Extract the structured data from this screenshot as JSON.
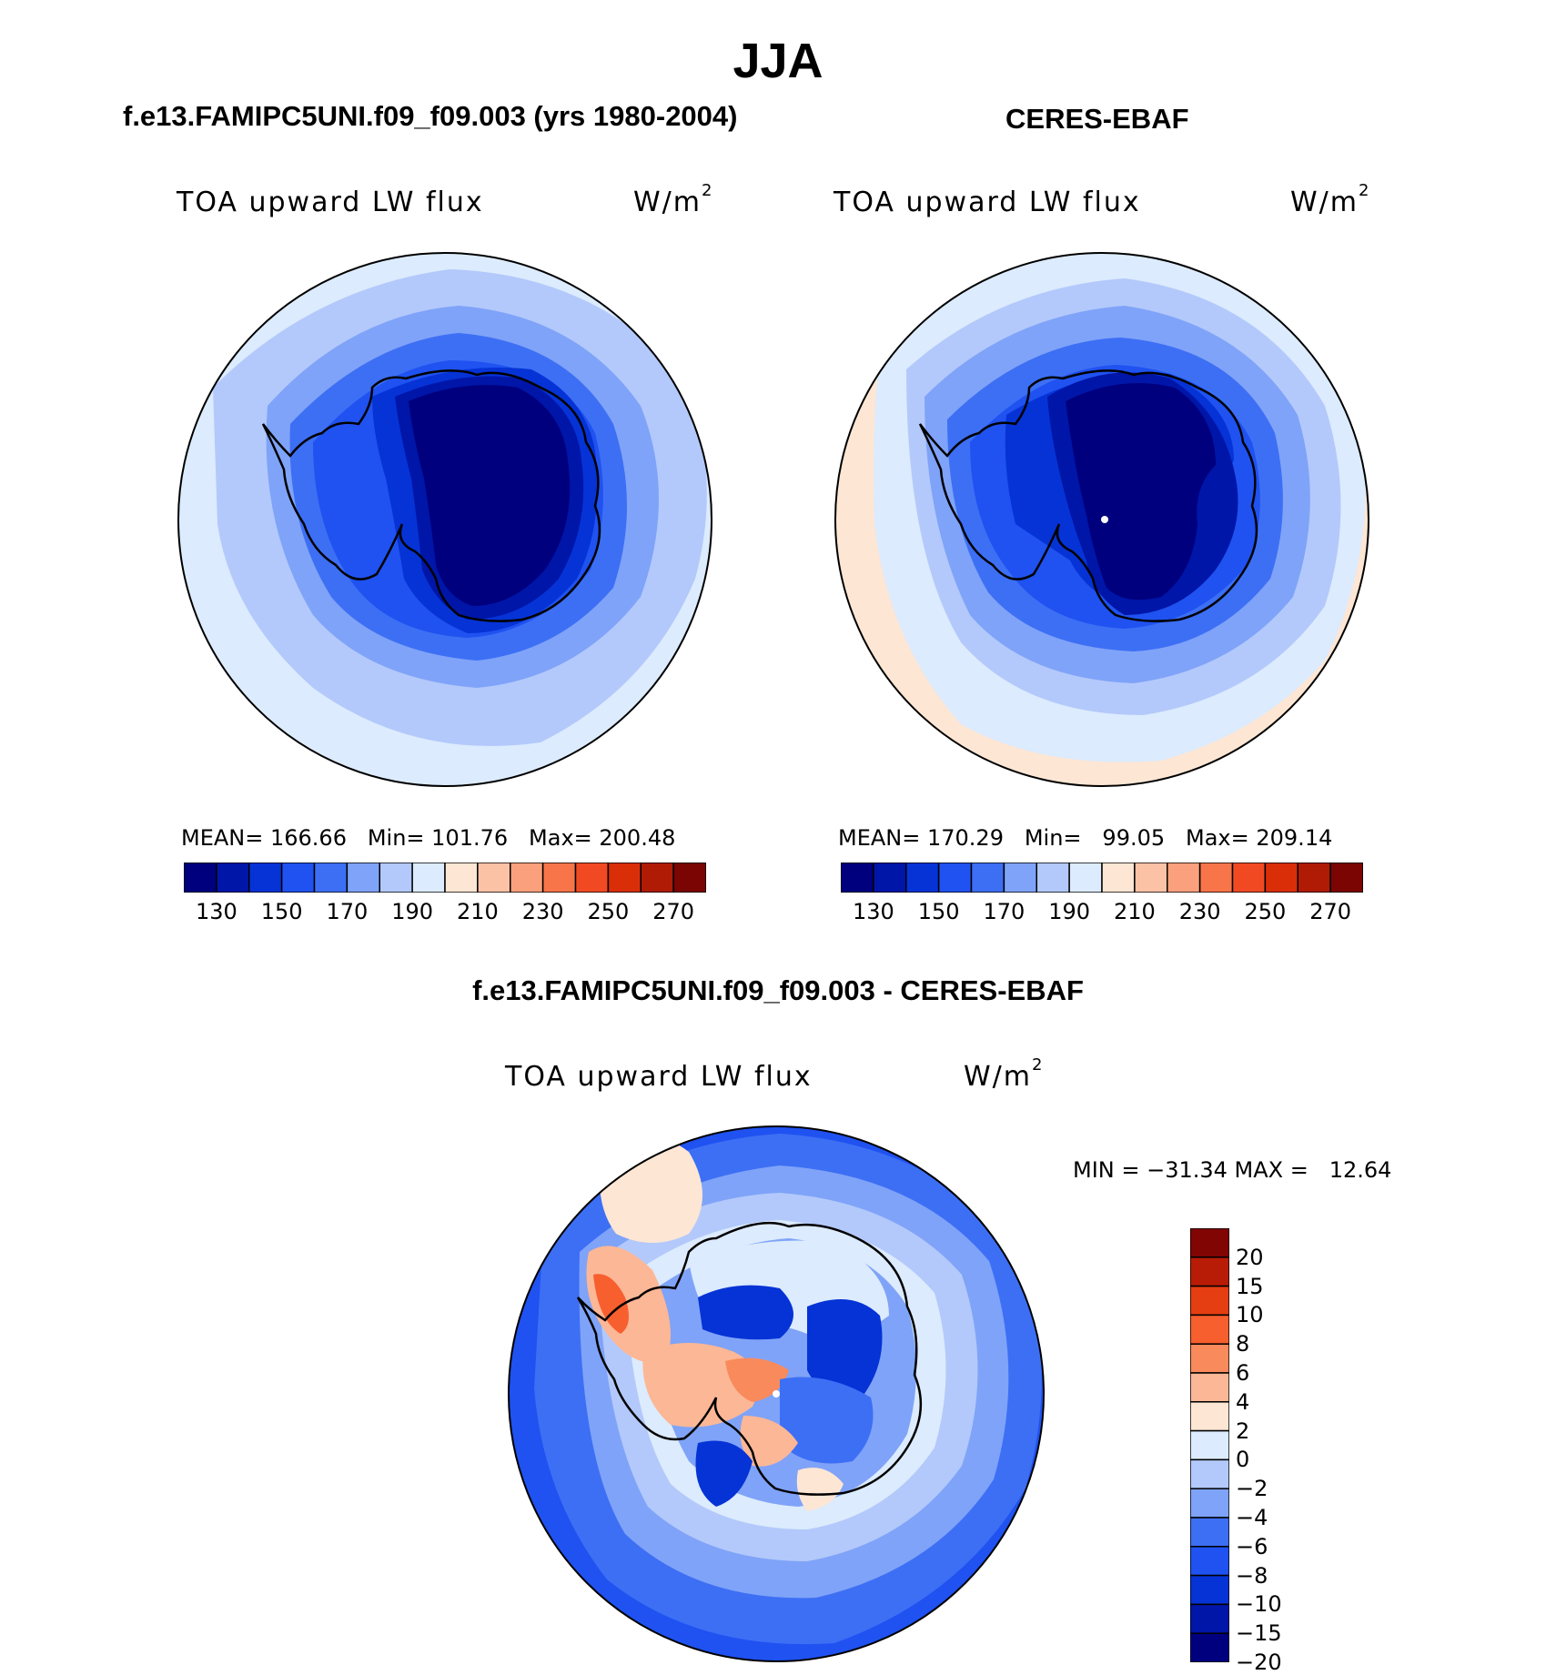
{
  "title": "JJA",
  "panels": [
    {
      "case": "f.e13.FAMIPC5UNI.f09_f09.003 (yrs 1980-2004)",
      "variable": "TOA upward LW flux",
      "unit": "W/m",
      "unit_sup": "2",
      "stats": "MEAN= 166.66   Min= 101.76   Max= 200.48"
    },
    {
      "case": "CERES-EBAF",
      "variable": "TOA upward LW flux",
      "unit": "W/m",
      "unit_sup": "2",
      "stats": "MEAN= 170.29   Min=   99.05   Max= 209.14"
    },
    {
      "case": "f.e13.FAMIPC5UNI.f09_f09.003 - CERES-EBAF",
      "variable": "TOA upward LW flux",
      "unit": "W/m",
      "unit_sup": "2",
      "stats": "MIN = −31.34 MAX =   12.64"
    }
  ],
  "colorbar_abs": {
    "colors": [
      "#00007f",
      "#0016a8",
      "#0633d6",
      "#1f52f0",
      "#3d6ff5",
      "#7fa3f8",
      "#b3c9fb",
      "#dcebfd",
      "#fde6d4",
      "#fcc2a6",
      "#fba07c",
      "#f87549",
      "#f14a22",
      "#d92e08",
      "#b01b06",
      "#7a0503"
    ],
    "tick_labels": [
      "130",
      "150",
      "170",
      "190",
      "210",
      "230",
      "250",
      "270"
    ]
  },
  "colorbar_diff": {
    "colors": [
      "#00007f",
      "#0016a8",
      "#0633d6",
      "#1f52f0",
      "#3d6ff5",
      "#7fa3f8",
      "#b3c9fb",
      "#dcebfd",
      "#fde6d4",
      "#fcb796",
      "#f98a5c",
      "#f75f2e",
      "#e53e12",
      "#b91c06",
      "#800503"
    ],
    "tick_labels": [
      "20",
      "15",
      "10",
      "8",
      "6",
      "4",
      "2",
      "0",
      "−2",
      "−4",
      "−6",
      "−8",
      "−10",
      "−15",
      "−20"
    ]
  },
  "chart_data": [
    {
      "type": "heatmap",
      "title": "f.e13.FAMIPC5UNI.f09_f09.003 (yrs 1980-2004)",
      "variable": "TOA upward LW flux",
      "units": "W/m2",
      "projection": "south polar stereographic",
      "contour_levels": [
        130,
        140,
        150,
        160,
        170,
        180,
        190,
        200,
        210,
        220,
        230,
        240,
        250,
        260,
        270
      ],
      "mean": 166.66,
      "min": 101.76,
      "max": 200.48
    },
    {
      "type": "heatmap",
      "title": "CERES-EBAF",
      "variable": "TOA upward LW flux",
      "units": "W/m2",
      "projection": "south polar stereographic",
      "contour_levels": [
        130,
        140,
        150,
        160,
        170,
        180,
        190,
        200,
        210,
        220,
        230,
        240,
        250,
        260,
        270
      ],
      "mean": 170.29,
      "min": 99.05,
      "max": 209.14
    },
    {
      "type": "heatmap",
      "title": "f.e13.FAMIPC5UNI.f09_f09.003 - CERES-EBAF",
      "variable": "TOA upward LW flux",
      "units": "W/m2",
      "projection": "south polar stereographic",
      "contour_levels": [
        -20,
        -15,
        -10,
        -8,
        -6,
        -4,
        -2,
        0,
        2,
        4,
        6,
        8,
        10,
        15,
        20
      ],
      "min": -31.34,
      "max": 12.64
    }
  ]
}
